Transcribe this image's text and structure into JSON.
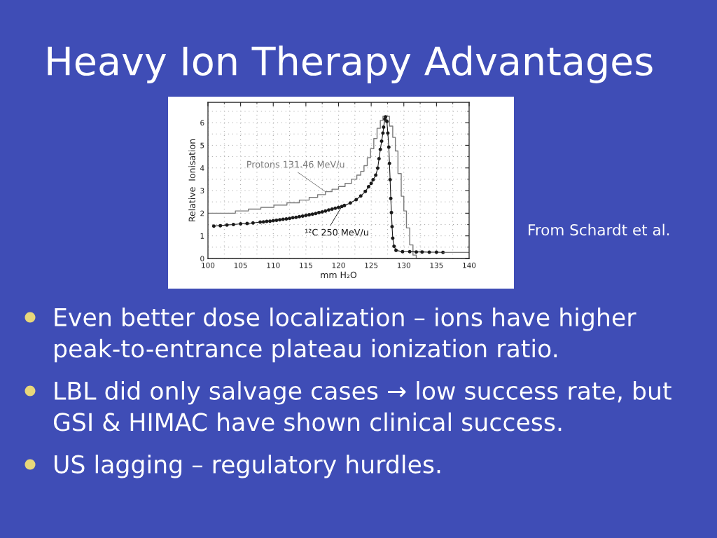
{
  "chart_data": {
    "type": "line",
    "title": "Heavy Ion Therapy Advantages",
    "xlabel": "mm H₂O",
    "ylabel": "Relative  Ionisation",
    "xlim": [
      100,
      140
    ],
    "ylim": [
      0,
      6.9
    ],
    "xticks": [
      100,
      {
        "value": 102.5,
        "label": null
      },
      105,
      {
        "value": 107.5,
        "label": null
      },
      110,
      {
        "value": 112.5,
        "label": null
      },
      115,
      {
        "value": 117.5,
        "label": null
      },
      120,
      {
        "value": 122.5,
        "label": null
      },
      125,
      {
        "value": 127.5,
        "label": null
      },
      130,
      {
        "value": 132.5,
        "label": null
      },
      135,
      {
        "value": 137.5,
        "label": null
      },
      140
    ],
    "yticks": [
      0,
      {
        "value": 0.5,
        "label": null
      },
      1,
      {
        "value": 1.5,
        "label": null
      },
      2,
      {
        "value": 2.5,
        "label": null
      },
      3,
      {
        "value": 3.5,
        "label": null
      },
      4,
      {
        "value": 4.5,
        "label": null
      },
      5,
      {
        "value": 5.5,
        "label": null
      },
      6,
      {
        "value": 6.5,
        "label": null
      }
    ],
    "grid": true,
    "series": [
      {
        "name": "Protons 131.46 MeV/u",
        "type": "step",
        "color": "#7a7a7a",
        "x": [
          100,
          104.2,
          106.2,
          108.1,
          110.1,
          112.1,
          114.0,
          115.5,
          116.8,
          118.0,
          119.0,
          120.0,
          121.0,
          122.0,
          122.8,
          123.4,
          123.9,
          124.4,
          124.9,
          125.4,
          125.9,
          126.4,
          126.8,
          127.8,
          128.3,
          128.7,
          129.1,
          129.6,
          130.0,
          130.4,
          130.9,
          131.4,
          131.9,
          132.5
        ],
        "values": [
          2.0,
          2.1,
          2.18,
          2.26,
          2.36,
          2.46,
          2.58,
          2.7,
          2.82,
          2.95,
          3.06,
          3.18,
          3.32,
          3.5,
          3.68,
          3.85,
          4.1,
          4.45,
          4.85,
          5.3,
          5.75,
          6.1,
          6.28,
          5.85,
          5.35,
          4.75,
          3.75,
          2.75,
          2.1,
          1.35,
          0.6,
          0.15,
          0.0,
          0.0
        ]
      },
      {
        "name": "¹²C 250 MeV/u",
        "color": "#1a1a1a",
        "marker": "circle",
        "x": [
          100.9,
          101.9,
          102.9,
          103.9,
          105.0,
          106.0,
          106.9,
          108.0,
          108.5,
          109.0,
          109.5,
          110.0,
          110.5,
          111.0,
          111.5,
          112.0,
          112.5,
          113.0,
          113.5,
          114.0,
          114.5,
          115.0,
          115.5,
          116.0,
          116.5,
          117.0,
          117.5,
          118.0,
          118.5,
          119.0,
          119.5,
          120.0,
          120.5,
          120.9,
          121.8,
          122.7,
          123.4,
          124.1,
          124.6,
          125.0,
          125.3,
          125.7,
          126.0,
          126.2,
          126.4,
          126.6,
          126.8,
          126.9,
          127.1,
          127.2,
          127.4,
          127.55,
          127.7,
          127.8,
          127.9,
          128.0,
          128.1,
          128.2,
          128.3,
          128.5,
          128.8,
          129.8,
          130.9,
          131.9,
          132.8,
          133.9,
          135.0,
          136.0
        ],
        "values": [
          1.43,
          1.45,
          1.48,
          1.5,
          1.53,
          1.55,
          1.57,
          1.61,
          1.62,
          1.64,
          1.65,
          1.67,
          1.69,
          1.71,
          1.73,
          1.75,
          1.77,
          1.8,
          1.82,
          1.85,
          1.87,
          1.9,
          1.93,
          1.96,
          1.99,
          2.03,
          2.06,
          2.1,
          2.14,
          2.18,
          2.22,
          2.26,
          2.3,
          2.34,
          2.45,
          2.6,
          2.76,
          2.96,
          3.17,
          3.32,
          3.48,
          3.68,
          3.99,
          4.41,
          4.82,
          5.18,
          5.54,
          5.8,
          6.16,
          6.26,
          6.06,
          5.54,
          4.92,
          4.2,
          3.48,
          2.65,
          2.03,
          1.41,
          0.9,
          0.54,
          0.36,
          0.3,
          0.3,
          0.29,
          0.29,
          0.28,
          0.28,
          0.27
        ]
      },
      {
        "color": "#555555",
        "x": [
          136.0,
          140
        ],
        "values": [
          0.27,
          0.27
        ]
      }
    ],
    "annotations": [
      "From Schardt et al.",
      "Even better dose localization – ions have higher peak-to-entrance plateau ionization ratio.",
      "LBL did only salvage cases → low success rate, but GSI & HIMAC have shown clinical success.",
      "US lagging – regulatory hurdles."
    ]
  }
}
